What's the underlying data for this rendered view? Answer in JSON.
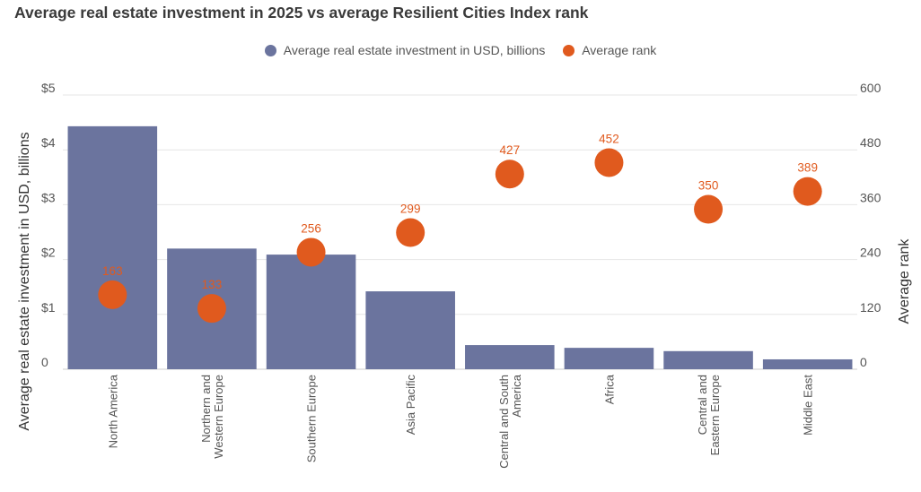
{
  "title": "Average real estate investment in 2025 vs average Resilient Cities Index rank",
  "legend": [
    {
      "label": "Average real estate investment in USD, billions",
      "color": "#6b749e"
    },
    {
      "label": "Average rank",
      "color": "#e05a1e"
    }
  ],
  "chart_data": {
    "type": "bar",
    "title": "Average real estate investment in 2025 vs average Resilient Cities Index rank",
    "categories": [
      [
        "North America"
      ],
      [
        "Northern and",
        "Western Europe"
      ],
      [
        "Southern Europe"
      ],
      [
        "Asia Pacific"
      ],
      [
        "Central and South",
        "America"
      ],
      [
        "Africa"
      ],
      [
        "Central and",
        "Eastern Europe"
      ],
      [
        "Middle East"
      ]
    ],
    "series": [
      {
        "name": "Average real estate investment in USD, billions",
        "type": "bar",
        "axis": "left",
        "values": [
          4.43,
          2.2,
          2.09,
          1.42,
          0.44,
          0.39,
          0.33,
          0.18
        ],
        "color": "#6b749e"
      },
      {
        "name": "Average rank",
        "type": "scatter",
        "axis": "right",
        "values": [
          163,
          133,
          256,
          299,
          427,
          452,
          350,
          389
        ],
        "labels": [
          "163",
          "133",
          "256",
          "299",
          "427",
          "452",
          "350",
          "389"
        ],
        "color": "#e05a1e"
      }
    ],
    "y_left": {
      "label": "Average real estate investment in USD, billions",
      "ylim": [
        0,
        5
      ],
      "ticks": [
        0,
        1,
        2,
        3,
        4,
        5
      ],
      "tick_labels": [
        "0",
        "$1",
        "$2",
        "$3",
        "$4",
        "$5"
      ]
    },
    "y_right": {
      "label": "Average rank",
      "ylim": [
        0,
        600
      ],
      "ticks": [
        0,
        120,
        240,
        360,
        480,
        600
      ],
      "tick_labels": [
        "0",
        "120",
        "240",
        "360",
        "480",
        "600"
      ]
    },
    "grid": true,
    "legend_position": "top-center"
  }
}
